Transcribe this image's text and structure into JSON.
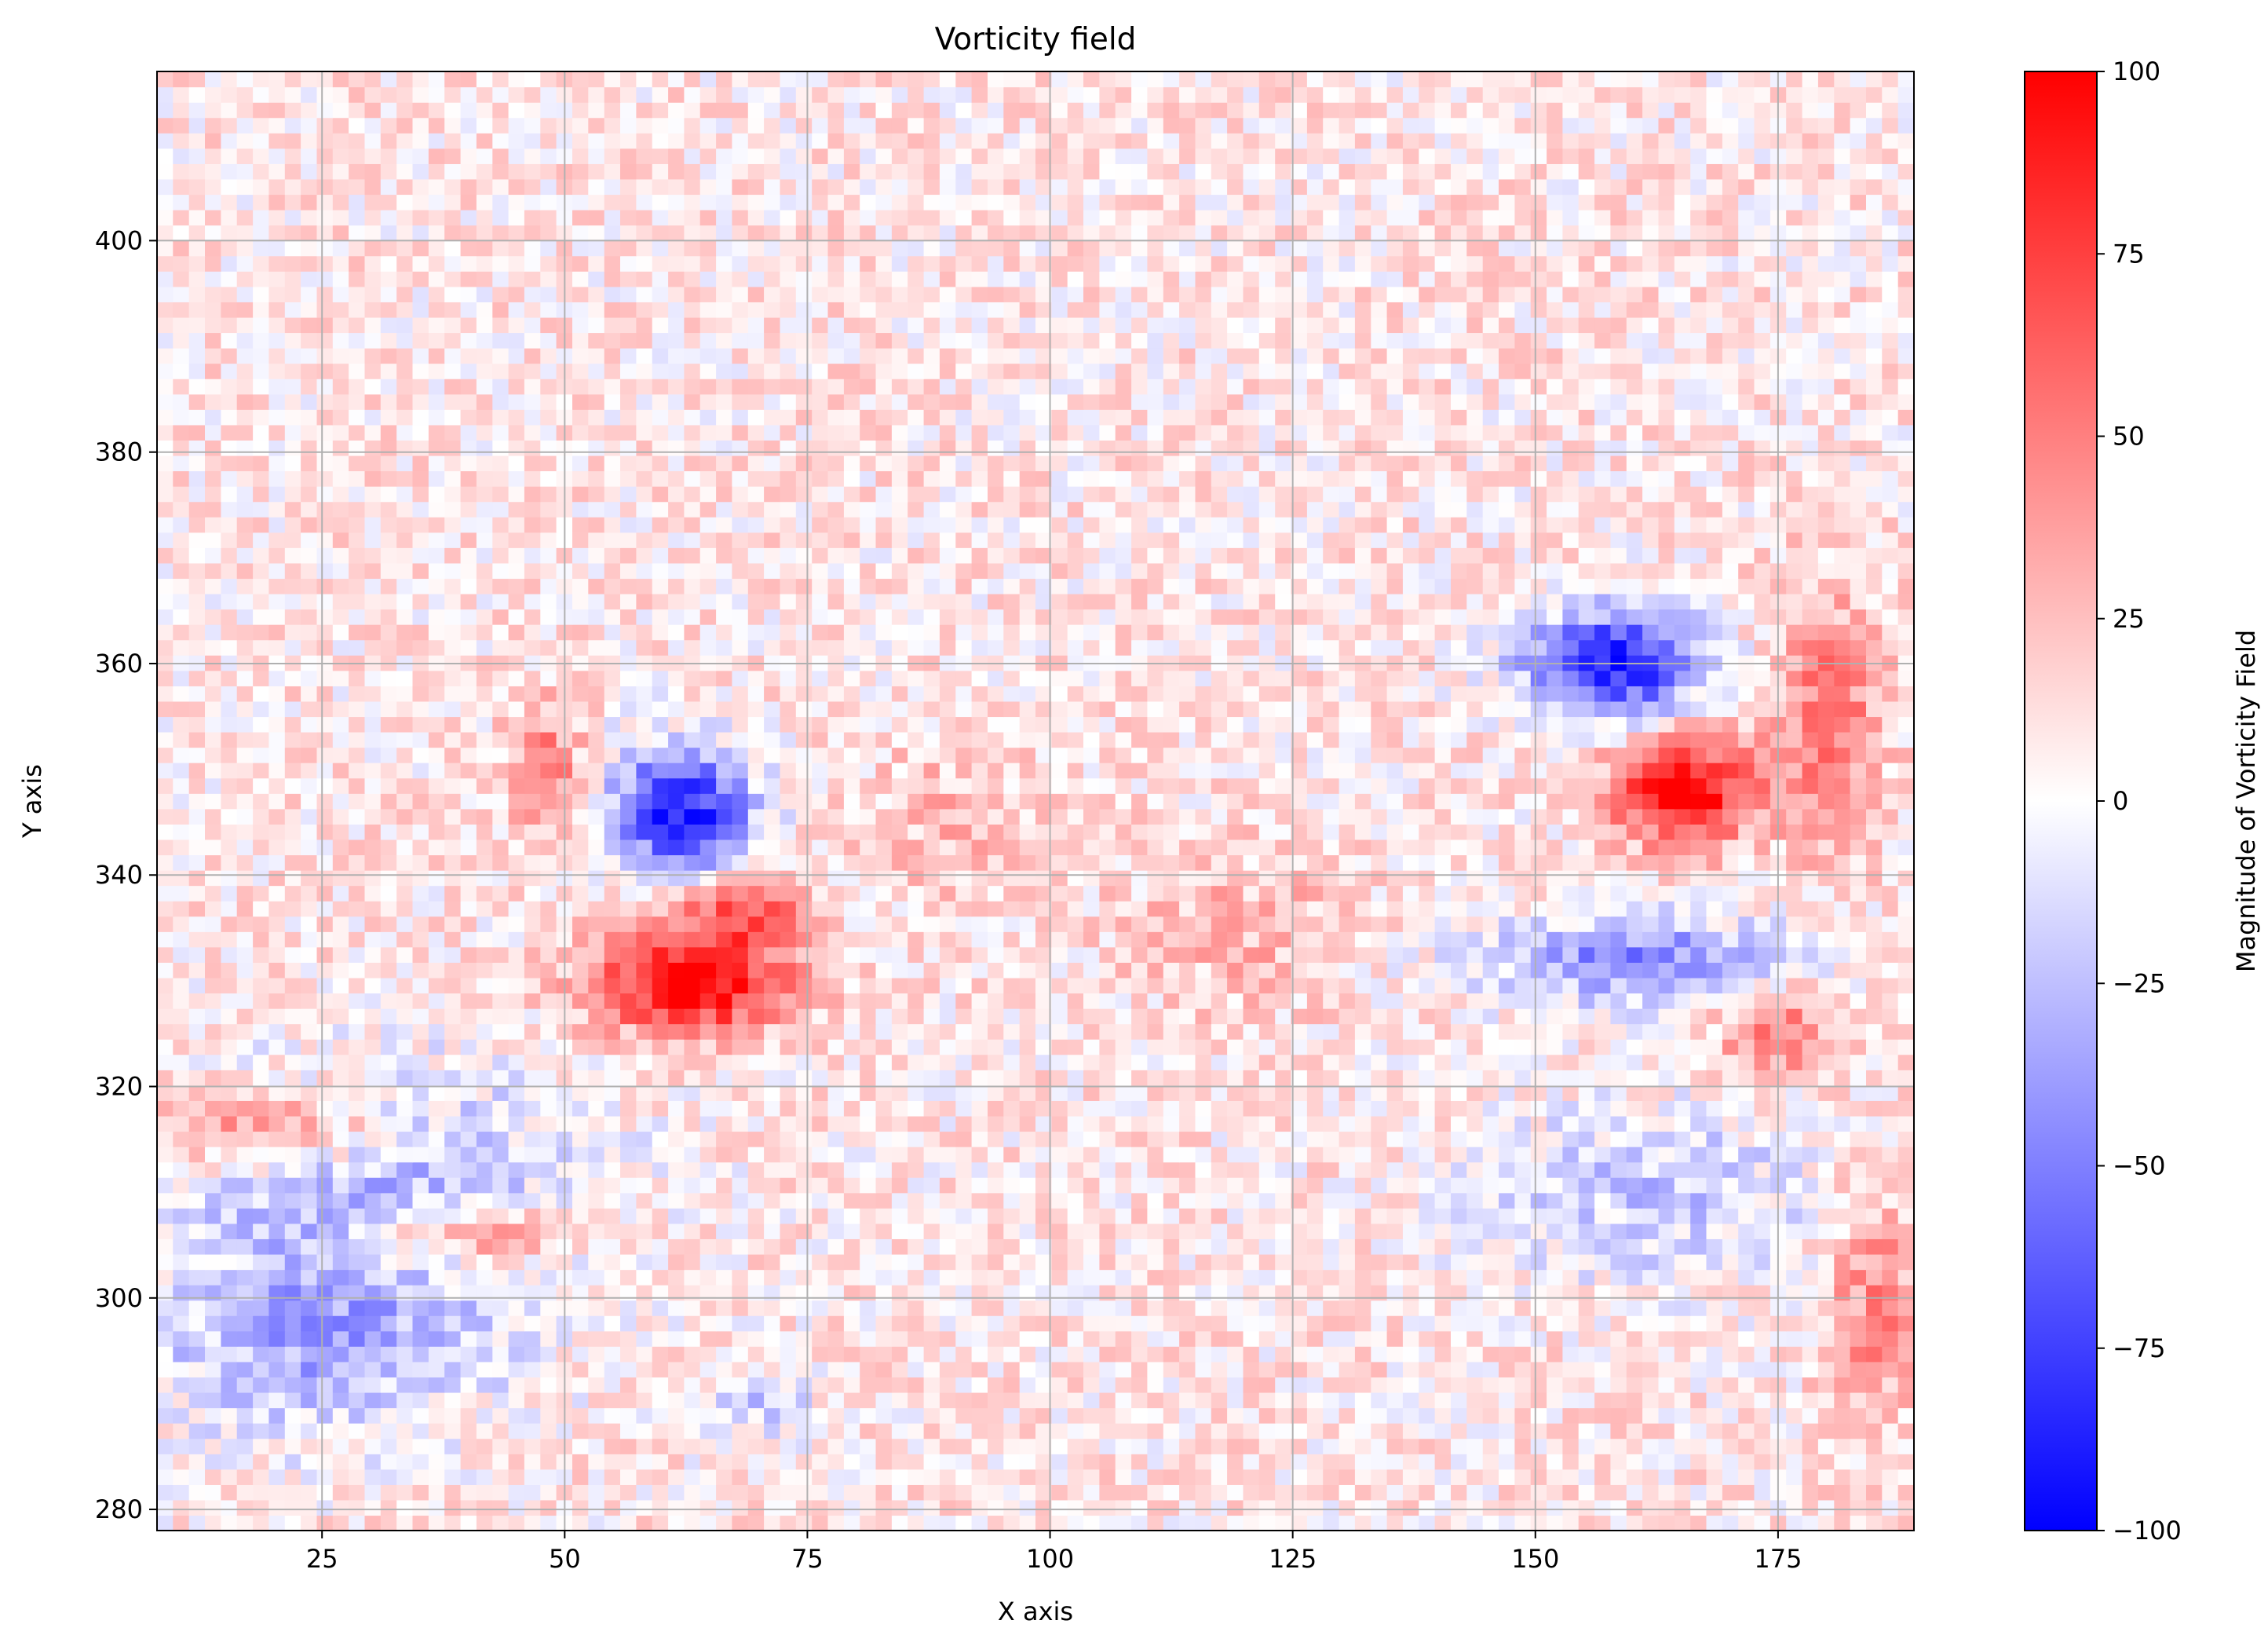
{
  "chart_data": {
    "type": "heatmap",
    "title": "Vorticity field",
    "xlabel": "X axis",
    "ylabel": "Y axis",
    "xlim": [
      8,
      189
    ],
    "ylim": [
      278,
      416
    ],
    "x_ticks": [
      25,
      50,
      75,
      100,
      125,
      150,
      175
    ],
    "y_ticks": [
      280,
      300,
      320,
      340,
      360,
      380,
      400
    ],
    "grid": true,
    "colormap": "bwr",
    "colorbar": {
      "label": "Magnitude of Vorticity Field",
      "range": [
        -100,
        100
      ],
      "ticks": [
        100,
        75,
        50,
        25,
        0,
        -25,
        -50,
        -75,
        -100
      ],
      "tick_labels": [
        "100",
        "75",
        "50",
        "25",
        "0",
        "−25",
        "−50",
        "−75",
        "−100"
      ],
      "low_color": "#0000ff",
      "mid_color": "#ffffff",
      "high_color": "#ff0000"
    },
    "background_level": 8,
    "features": [
      {
        "x": 62,
        "y": 346,
        "sx": 7,
        "sy": 6,
        "value": -100
      },
      {
        "x": 63,
        "y": 330,
        "sx": 10,
        "sy": 5,
        "value": 100
      },
      {
        "x": 68,
        "y": 337,
        "sx": 6,
        "sy": 3,
        "value": 60
      },
      {
        "x": 158,
        "y": 360,
        "sx": 9,
        "sy": 5,
        "value": -100
      },
      {
        "x": 165,
        "y": 348,
        "sx": 7,
        "sy": 5,
        "value": 100
      },
      {
        "x": 30,
        "y": 312,
        "sx": 22,
        "sy": 10,
        "value": -38
      },
      {
        "x": 25,
        "y": 296,
        "sx": 18,
        "sy": 9,
        "value": -42
      },
      {
        "x": 20,
        "y": 316,
        "sx": 12,
        "sy": 4,
        "value": 55
      },
      {
        "x": 40,
        "y": 306,
        "sx": 10,
        "sy": 3,
        "value": 48
      },
      {
        "x": 48,
        "y": 350,
        "sx": 4,
        "sy": 6,
        "value": 45
      },
      {
        "x": 160,
        "y": 332,
        "sx": 16,
        "sy": 4,
        "value": -55
      },
      {
        "x": 162,
        "y": 310,
        "sx": 18,
        "sy": 8,
        "value": -30
      },
      {
        "x": 175,
        "y": 325,
        "sx": 6,
        "sy": 4,
        "value": 45
      },
      {
        "x": 180,
        "y": 355,
        "sx": 6,
        "sy": 12,
        "value": 45
      },
      {
        "x": 185,
        "y": 300,
        "sx": 5,
        "sy": 12,
        "value": 38
      },
      {
        "x": 90,
        "y": 345,
        "sx": 10,
        "sy": 8,
        "value": 18
      },
      {
        "x": 120,
        "y": 335,
        "sx": 12,
        "sy": 8,
        "value": 20
      },
      {
        "x": 70,
        "y": 290,
        "sx": 6,
        "sy": 4,
        "value": -25
      }
    ]
  }
}
